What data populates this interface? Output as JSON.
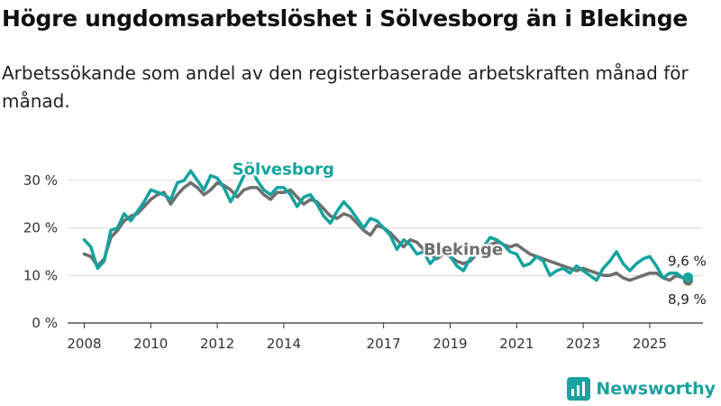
{
  "title": "Högre ungdomsarbetslöshet i Sölvesborg än i Blekinge",
  "subtitle": "Arbetssökande som andel av den registerbaserade arbetskraften månad för månad.",
  "logo_text": "Newsworthy",
  "colors": {
    "solvesborg": "#15a39e",
    "blekinge": "#6e6e6e",
    "grid": "#dcdcdc",
    "axis": "#333333"
  },
  "chart_data": {
    "type": "line",
    "y_unit": "%",
    "ylim": [
      0,
      30
    ],
    "y_ticks": [
      0,
      10,
      20,
      30
    ],
    "y_tick_labels": [
      "0 %",
      "10 %",
      "20 %",
      "30 %"
    ],
    "xlim": [
      2007.5,
      2026.6
    ],
    "x_ticks": [
      2008,
      2010,
      2012,
      2014,
      2017,
      2019,
      2021,
      2023,
      2025
    ],
    "x_tick_labels": [
      "2008",
      "2010",
      "2012",
      "2014",
      "2017",
      "2019",
      "2021",
      "2023",
      "2025"
    ],
    "series": [
      {
        "name": "Blekinge",
        "label": "Blekinge",
        "end_label": "8,9 %",
        "values": [
          [
            2008.0,
            14.5
          ],
          [
            2008.2,
            14.0
          ],
          [
            2008.4,
            12.0
          ],
          [
            2008.6,
            13.5
          ],
          [
            2008.8,
            18.0
          ],
          [
            2009.0,
            19.5
          ],
          [
            2009.2,
            21.5
          ],
          [
            2009.4,
            22.5
          ],
          [
            2009.6,
            23.0
          ],
          [
            2009.8,
            24.5
          ],
          [
            2010.0,
            26.0
          ],
          [
            2010.2,
            27.0
          ],
          [
            2010.4,
            27.5
          ],
          [
            2010.6,
            25.0
          ],
          [
            2010.8,
            27.0
          ],
          [
            2011.0,
            28.5
          ],
          [
            2011.2,
            29.5
          ],
          [
            2011.4,
            28.5
          ],
          [
            2011.6,
            27.0
          ],
          [
            2011.8,
            28.0
          ],
          [
            2012.0,
            29.5
          ],
          [
            2012.2,
            29.0
          ],
          [
            2012.4,
            28.0
          ],
          [
            2012.6,
            26.5
          ],
          [
            2012.8,
            28.0
          ],
          [
            2013.0,
            28.5
          ],
          [
            2013.2,
            28.5
          ],
          [
            2013.4,
            27.0
          ],
          [
            2013.6,
            26.0
          ],
          [
            2013.8,
            27.5
          ],
          [
            2014.0,
            27.5
          ],
          [
            2014.2,
            28.0
          ],
          [
            2014.4,
            26.5
          ],
          [
            2014.6,
            25.0
          ],
          [
            2014.8,
            26.0
          ],
          [
            2015.0,
            25.5
          ],
          [
            2015.2,
            24.0
          ],
          [
            2015.4,
            22.5
          ],
          [
            2015.6,
            22.0
          ],
          [
            2015.8,
            23.0
          ],
          [
            2016.0,
            22.5
          ],
          [
            2016.2,
            21.0
          ],
          [
            2016.4,
            19.5
          ],
          [
            2016.6,
            18.5
          ],
          [
            2016.8,
            20.5
          ],
          [
            2017.0,
            20.0
          ],
          [
            2017.2,
            19.0
          ],
          [
            2017.4,
            17.5
          ],
          [
            2017.6,
            16.0
          ],
          [
            2017.8,
            17.5
          ],
          [
            2018.0,
            17.0
          ],
          [
            2018.2,
            15.5
          ],
          [
            2018.4,
            14.5
          ],
          [
            2018.6,
            13.5
          ],
          [
            2018.8,
            14.5
          ],
          [
            2019.0,
            14.0
          ],
          [
            2019.2,
            13.0
          ],
          [
            2019.4,
            12.5
          ],
          [
            2019.6,
            13.0
          ],
          [
            2019.8,
            14.5
          ],
          [
            2020.0,
            15.5
          ],
          [
            2020.2,
            16.5
          ],
          [
            2020.4,
            17.0
          ],
          [
            2020.6,
            16.5
          ],
          [
            2020.8,
            16.0
          ],
          [
            2021.0,
            16.5
          ],
          [
            2021.2,
            15.5
          ],
          [
            2021.4,
            14.5
          ],
          [
            2021.6,
            14.0
          ],
          [
            2021.8,
            13.5
          ],
          [
            2022.0,
            13.0
          ],
          [
            2022.2,
            12.5
          ],
          [
            2022.4,
            12.0
          ],
          [
            2022.6,
            11.5
          ],
          [
            2022.8,
            11.0
          ],
          [
            2023.0,
            11.5
          ],
          [
            2023.2,
            11.0
          ],
          [
            2023.4,
            10.5
          ],
          [
            2023.6,
            10.0
          ],
          [
            2023.8,
            10.0
          ],
          [
            2024.0,
            10.5
          ],
          [
            2024.2,
            9.5
          ],
          [
            2024.4,
            9.0
          ],
          [
            2024.6,
            9.5
          ],
          [
            2024.8,
            10.0
          ],
          [
            2025.0,
            10.5
          ],
          [
            2025.2,
            10.5
          ],
          [
            2025.4,
            9.5
          ],
          [
            2025.6,
            9.0
          ],
          [
            2025.8,
            10.0
          ],
          [
            2026.0,
            9.5
          ],
          [
            2026.15,
            8.9
          ]
        ]
      },
      {
        "name": "Sölvesborg",
        "label": "Sölvesborg",
        "end_label": "9,6 %",
        "values": [
          [
            2008.0,
            17.5
          ],
          [
            2008.2,
            16.0
          ],
          [
            2008.4,
            11.5
          ],
          [
            2008.6,
            13.0
          ],
          [
            2008.8,
            19.5
          ],
          [
            2009.0,
            20.0
          ],
          [
            2009.2,
            23.0
          ],
          [
            2009.4,
            21.5
          ],
          [
            2009.6,
            23.5
          ],
          [
            2009.8,
            25.5
          ],
          [
            2010.0,
            28.0
          ],
          [
            2010.2,
            27.5
          ],
          [
            2010.4,
            27.0
          ],
          [
            2010.6,
            26.0
          ],
          [
            2010.8,
            29.5
          ],
          [
            2011.0,
            30.0
          ],
          [
            2011.2,
            32.0
          ],
          [
            2011.4,
            30.0
          ],
          [
            2011.6,
            28.0
          ],
          [
            2011.8,
            31.0
          ],
          [
            2012.0,
            30.5
          ],
          [
            2012.2,
            28.5
          ],
          [
            2012.4,
            25.5
          ],
          [
            2012.6,
            28.0
          ],
          [
            2012.8,
            31.0
          ],
          [
            2013.0,
            33.0
          ],
          [
            2013.2,
            30.0
          ],
          [
            2013.4,
            28.0
          ],
          [
            2013.6,
            27.0
          ],
          [
            2013.8,
            28.5
          ],
          [
            2014.0,
            28.5
          ],
          [
            2014.2,
            27.0
          ],
          [
            2014.4,
            24.5
          ],
          [
            2014.6,
            26.5
          ],
          [
            2014.8,
            27.0
          ],
          [
            2015.0,
            25.0
          ],
          [
            2015.2,
            22.5
          ],
          [
            2015.4,
            21.0
          ],
          [
            2015.6,
            23.5
          ],
          [
            2015.8,
            25.5
          ],
          [
            2016.0,
            24.0
          ],
          [
            2016.2,
            22.0
          ],
          [
            2016.4,
            20.0
          ],
          [
            2016.6,
            22.0
          ],
          [
            2016.8,
            21.5
          ],
          [
            2017.0,
            20.0
          ],
          [
            2017.2,
            18.5
          ],
          [
            2017.4,
            15.5
          ],
          [
            2017.6,
            17.5
          ],
          [
            2017.8,
            16.5
          ],
          [
            2018.0,
            14.5
          ],
          [
            2018.2,
            15.0
          ],
          [
            2018.4,
            12.5
          ],
          [
            2018.6,
            14.0
          ],
          [
            2018.8,
            15.0
          ],
          [
            2019.0,
            14.0
          ],
          [
            2019.2,
            12.0
          ],
          [
            2019.4,
            11.0
          ],
          [
            2019.6,
            13.5
          ],
          [
            2019.8,
            15.0
          ],
          [
            2020.0,
            16.0
          ],
          [
            2020.2,
            18.0
          ],
          [
            2020.4,
            17.5
          ],
          [
            2020.6,
            16.5
          ],
          [
            2020.8,
            15.0
          ],
          [
            2021.0,
            14.5
          ],
          [
            2021.2,
            12.0
          ],
          [
            2021.4,
            12.5
          ],
          [
            2021.6,
            14.0
          ],
          [
            2021.8,
            13.0
          ],
          [
            2022.0,
            10.0
          ],
          [
            2022.2,
            11.0
          ],
          [
            2022.4,
            11.5
          ],
          [
            2022.6,
            10.5
          ],
          [
            2022.8,
            12.0
          ],
          [
            2023.0,
            11.0
          ],
          [
            2023.2,
            10.0
          ],
          [
            2023.4,
            9.0
          ],
          [
            2023.6,
            11.5
          ],
          [
            2023.8,
            13.0
          ],
          [
            2024.0,
            15.0
          ],
          [
            2024.2,
            12.5
          ],
          [
            2024.4,
            11.0
          ],
          [
            2024.6,
            12.5
          ],
          [
            2024.8,
            13.5
          ],
          [
            2025.0,
            14.0
          ],
          [
            2025.2,
            12.0
          ],
          [
            2025.4,
            9.5
          ],
          [
            2025.6,
            10.5
          ],
          [
            2025.8,
            10.5
          ],
          [
            2026.0,
            9.5
          ],
          [
            2026.15,
            9.6
          ]
        ]
      }
    ]
  }
}
